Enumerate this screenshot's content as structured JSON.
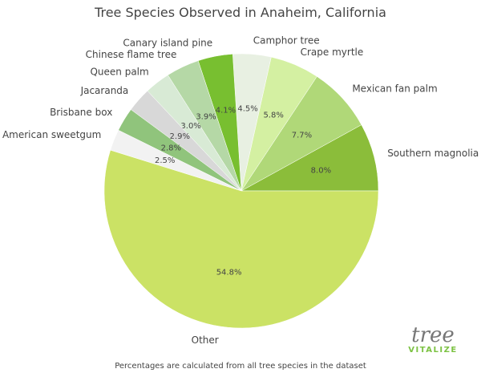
{
  "chart_data": {
    "type": "pie",
    "title": "Tree Species Observed in Anaheim, California",
    "footnote": "Percentages are calculated from all tree species in the dataset",
    "slices": [
      {
        "label": "Southern magnolia",
        "value": 8.0,
        "pct_label": "8.0%",
        "color": "#8bbd3a"
      },
      {
        "label": "Mexican fan palm",
        "value": 7.7,
        "pct_label": "7.7%",
        "color": "#b0d878"
      },
      {
        "label": "Crape myrtle",
        "value": 5.8,
        "pct_label": "5.8%",
        "color": "#d4f0a2"
      },
      {
        "label": "Camphor tree",
        "value": 4.5,
        "pct_label": "4.5%",
        "color": "#e8f0e2"
      },
      {
        "label": "Canary island pine",
        "value": 4.1,
        "pct_label": "4.1%",
        "color": "#78bf30"
      },
      {
        "label": "Chinese flame tree",
        "value": 3.9,
        "pct_label": "3.9%",
        "color": "#b5d8a6"
      },
      {
        "label": "Queen palm",
        "value": 3.0,
        "pct_label": "3.0%",
        "color": "#d8ead5"
      },
      {
        "label": "Jacaranda",
        "value": 2.9,
        "pct_label": "2.9%",
        "color": "#d8d8d8"
      },
      {
        "label": "Brisbane box",
        "value": 2.8,
        "pct_label": "2.8%",
        "color": "#90c47c"
      },
      {
        "label": "American sweetgum",
        "value": 2.5,
        "pct_label": "2.5%",
        "color": "#f2f2f2"
      },
      {
        "label": "Other",
        "value": 54.8,
        "pct_label": "54.8%",
        "color": "#cbe265"
      }
    ],
    "start_angle": "east, counterclockwise"
  },
  "logo": {
    "word": "tree",
    "sub": "VITALIZE",
    "color": "#7cc242"
  }
}
